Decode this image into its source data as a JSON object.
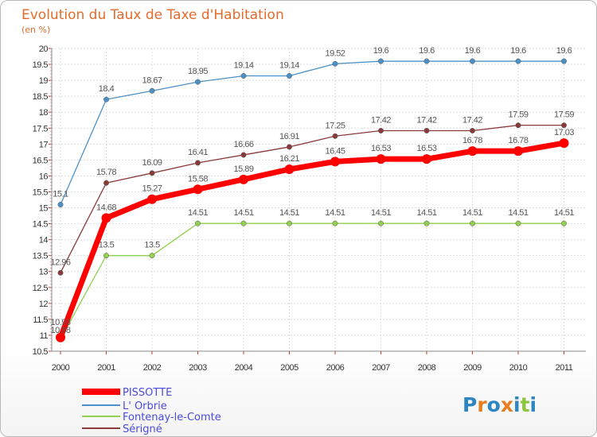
{
  "chart_data": {
    "type": "line",
    "title": "Evolution du Taux de Taxe d'Habitation",
    "subtitle": "(en %)",
    "x": [
      "2000",
      "2001",
      "2002",
      "2003",
      "2004",
      "2005",
      "2006",
      "2007",
      "2008",
      "2009",
      "2010",
      "2011"
    ],
    "ylim": [
      10.5,
      20
    ],
    "yticks": [
      "10.5",
      "11",
      "11.5",
      "12",
      "12.5",
      "13",
      "13.5",
      "14",
      "14.5",
      "15",
      "15.5",
      "16",
      "16.5",
      "17",
      "17.5",
      "18",
      "18.5",
      "19",
      "19.5",
      "20"
    ],
    "grid": true,
    "legend_position": "bottom-left",
    "series": [
      {
        "name": "PISSOTTE",
        "color": "#ff0000",
        "values": [
          10.93,
          14.68,
          15.27,
          15.58,
          15.89,
          16.21,
          16.45,
          16.53,
          16.53,
          16.78,
          16.78,
          17.03
        ],
        "labels": [
          "10.93",
          "14.68",
          "15.27",
          "15.58",
          "15.89",
          "16.21",
          "16.45",
          "16.53",
          "16.53",
          "16.78",
          "16.78",
          "17.03"
        ]
      },
      {
        "name": "L' Orbrie",
        "color": "#4b91c8",
        "values": [
          15.1,
          18.4,
          18.67,
          18.95,
          19.14,
          19.14,
          19.52,
          19.6,
          19.6,
          19.6,
          19.6,
          19.6
        ],
        "labels": [
          "15.1",
          "18.4",
          "18.67",
          "18.95",
          "19.14",
          "19.14",
          "19.52",
          "19.6",
          "19.6",
          "19.6",
          "19.6",
          "19.6"
        ]
      },
      {
        "name": "Fontenay-le-Comte",
        "color": "#92d050",
        "values": [
          10.88,
          13.5,
          13.5,
          14.51,
          14.51,
          14.51,
          14.51,
          14.51,
          14.51,
          14.51,
          14.51,
          14.51
        ],
        "labels": [
          "10.88",
          "13.5",
          "13.5",
          "14.51",
          "14.51",
          "14.51",
          "14.51",
          "14.51",
          "14.51",
          "14.51",
          "14.51",
          "14.51"
        ]
      },
      {
        "name": "Sérigné",
        "color": "#8b3a3a",
        "values": [
          12.96,
          15.78,
          16.09,
          16.41,
          16.66,
          16.91,
          17.25,
          17.42,
          17.42,
          17.42,
          17.59,
          17.59
        ],
        "labels": [
          "12.96",
          "15.78",
          "16.09",
          "16.41",
          "16.66",
          "16.91",
          "17.25",
          "17.42",
          "17.42",
          "17.42",
          "17.59",
          "17.59"
        ]
      }
    ]
  },
  "logo": {
    "text": "Proxiti",
    "colors": [
      "#2e86c1",
      "#e67e22",
      "#2e86c1",
      "#e67e22",
      "#2e86c1",
      "#8cc63f",
      "#2e86c1"
    ]
  }
}
